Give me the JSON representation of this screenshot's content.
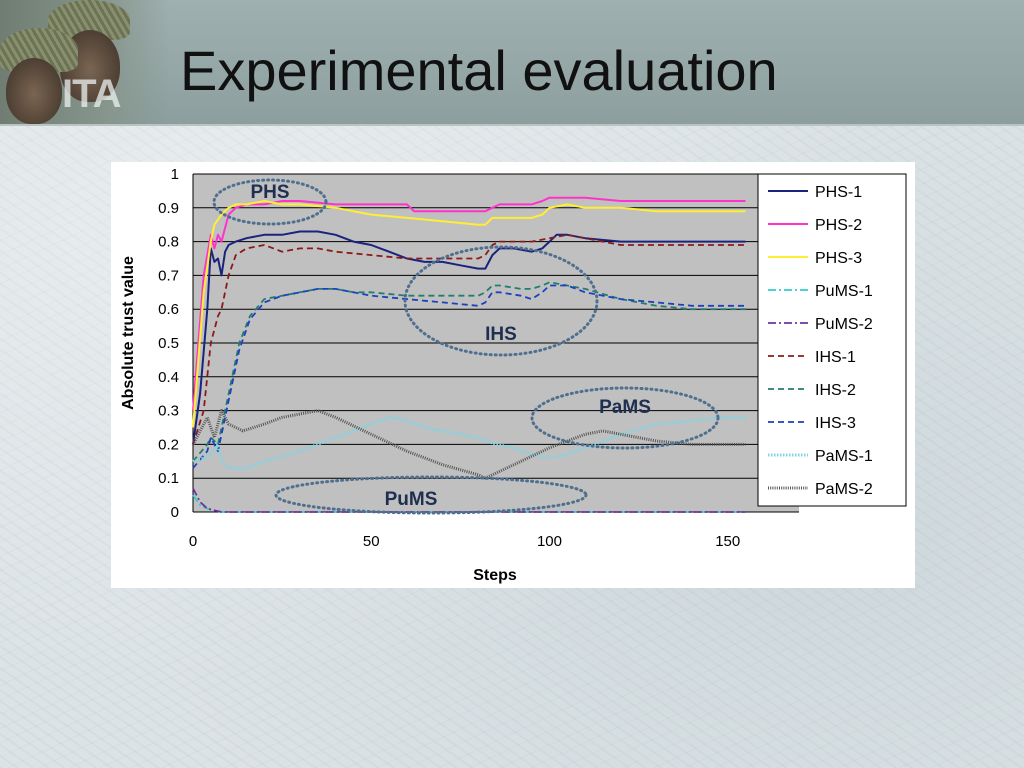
{
  "slide": {
    "title": "Experimental evaluation",
    "logo_text": "ITA"
  },
  "colors": {
    "header": "#95a7a6",
    "plot_area": "#c0c0c0",
    "annotation": "#4f6f8f"
  },
  "annotations": [
    "PHS",
    "IHS",
    "PaMS",
    "PuMS"
  ],
  "chart_data": {
    "type": "line",
    "xlabel": "Steps",
    "ylabel": "Absolute trust value",
    "xlim": [
      0,
      170
    ],
    "ylim": [
      0,
      1
    ],
    "xticks": [
      0,
      50,
      100,
      150
    ],
    "yticks": [
      0,
      0.1,
      0.2,
      0.3,
      0.4,
      0.5,
      0.6,
      0.7,
      0.8,
      0.9,
      1
    ],
    "grid": "horizontal",
    "legend": "right",
    "series": [
      {
        "name": "PHS-1",
        "color": "#1a237e",
        "dash": "solid",
        "points": [
          [
            0,
            0.2
          ],
          [
            2,
            0.35
          ],
          [
            4,
            0.6
          ],
          [
            5,
            0.78
          ],
          [
            6,
            0.74
          ],
          [
            7,
            0.75
          ],
          [
            8,
            0.7
          ],
          [
            9,
            0.77
          ],
          [
            10,
            0.79
          ],
          [
            12,
            0.8
          ],
          [
            15,
            0.81
          ],
          [
            20,
            0.82
          ],
          [
            25,
            0.82
          ],
          [
            30,
            0.83
          ],
          [
            35,
            0.83
          ],
          [
            40,
            0.82
          ],
          [
            45,
            0.8
          ],
          [
            50,
            0.79
          ],
          [
            55,
            0.77
          ],
          [
            60,
            0.75
          ],
          [
            65,
            0.74
          ],
          [
            70,
            0.74
          ],
          [
            75,
            0.73
          ],
          [
            80,
            0.72
          ],
          [
            82,
            0.72
          ],
          [
            84,
            0.76
          ],
          [
            86,
            0.78
          ],
          [
            90,
            0.78
          ],
          [
            95,
            0.77
          ],
          [
            98,
            0.78
          ],
          [
            100,
            0.8
          ],
          [
            102,
            0.82
          ],
          [
            105,
            0.82
          ],
          [
            110,
            0.81
          ],
          [
            120,
            0.8
          ],
          [
            130,
            0.8
          ],
          [
            140,
            0.8
          ],
          [
            150,
            0.8
          ],
          [
            155,
            0.8
          ]
        ]
      },
      {
        "name": "PHS-2",
        "color": "#ff33cc",
        "dash": "solid",
        "points": [
          [
            0,
            0.3
          ],
          [
            3,
            0.7
          ],
          [
            5,
            0.82
          ],
          [
            6,
            0.78
          ],
          [
            7,
            0.82
          ],
          [
            8,
            0.8
          ],
          [
            10,
            0.88
          ],
          [
            12,
            0.9
          ],
          [
            15,
            0.91
          ],
          [
            20,
            0.91
          ],
          [
            25,
            0.92
          ],
          [
            30,
            0.92
          ],
          [
            40,
            0.91
          ],
          [
            50,
            0.91
          ],
          [
            60,
            0.91
          ],
          [
            62,
            0.89
          ],
          [
            70,
            0.89
          ],
          [
            75,
            0.89
          ],
          [
            80,
            0.89
          ],
          [
            82,
            0.89
          ],
          [
            84,
            0.9
          ],
          [
            86,
            0.91
          ],
          [
            95,
            0.91
          ],
          [
            98,
            0.92
          ],
          [
            100,
            0.93
          ],
          [
            105,
            0.93
          ],
          [
            110,
            0.93
          ],
          [
            120,
            0.92
          ],
          [
            130,
            0.92
          ],
          [
            140,
            0.92
          ],
          [
            150,
            0.92
          ],
          [
            155,
            0.92
          ]
        ]
      },
      {
        "name": "PHS-3",
        "color": "#ffee33",
        "dash": "solid",
        "points": [
          [
            0,
            0.25
          ],
          [
            3,
            0.65
          ],
          [
            5,
            0.8
          ],
          [
            6,
            0.85
          ],
          [
            8,
            0.88
          ],
          [
            10,
            0.9
          ],
          [
            12,
            0.91
          ],
          [
            15,
            0.91
          ],
          [
            20,
            0.92
          ],
          [
            25,
            0.91
          ],
          [
            30,
            0.91
          ],
          [
            40,
            0.9
          ],
          [
            50,
            0.88
          ],
          [
            60,
            0.87
          ],
          [
            70,
            0.86
          ],
          [
            80,
            0.85
          ],
          [
            82,
            0.85
          ],
          [
            84,
            0.87
          ],
          [
            86,
            0.87
          ],
          [
            95,
            0.87
          ],
          [
            98,
            0.88
          ],
          [
            100,
            0.9
          ],
          [
            105,
            0.91
          ],
          [
            110,
            0.9
          ],
          [
            120,
            0.9
          ],
          [
            130,
            0.89
          ],
          [
            140,
            0.89
          ],
          [
            150,
            0.89
          ],
          [
            155,
            0.89
          ]
        ]
      },
      {
        "name": "PuMS-1",
        "color": "#33cccc",
        "dash": "dashdot",
        "points": [
          [
            0,
            0.05
          ],
          [
            2,
            0.02
          ],
          [
            4,
            0.01
          ],
          [
            8,
            0.0
          ],
          [
            20,
            0.0
          ],
          [
            60,
            0.0
          ],
          [
            100,
            0.0
          ],
          [
            155,
            0.0
          ]
        ]
      },
      {
        "name": "PuMS-2",
        "color": "#7030a0",
        "dash": "dashdot",
        "points": [
          [
            0,
            0.07
          ],
          [
            2,
            0.03
          ],
          [
            4,
            0.01
          ],
          [
            8,
            0.0
          ],
          [
            20,
            0.0
          ],
          [
            60,
            0.0
          ],
          [
            100,
            0.0
          ],
          [
            155,
            0.0
          ]
        ]
      },
      {
        "name": "IHS-1",
        "color": "#8b1a1a",
        "dash": "dashed",
        "points": [
          [
            0,
            0.2
          ],
          [
            3,
            0.3
          ],
          [
            5,
            0.5
          ],
          [
            7,
            0.58
          ],
          [
            8,
            0.6
          ],
          [
            10,
            0.7
          ],
          [
            12,
            0.76
          ],
          [
            15,
            0.78
          ],
          [
            20,
            0.79
          ],
          [
            25,
            0.77
          ],
          [
            30,
            0.78
          ],
          [
            35,
            0.78
          ],
          [
            40,
            0.77
          ],
          [
            50,
            0.76
          ],
          [
            60,
            0.75
          ],
          [
            70,
            0.75
          ],
          [
            80,
            0.75
          ],
          [
            82,
            0.76
          ],
          [
            84,
            0.79
          ],
          [
            86,
            0.8
          ],
          [
            95,
            0.8
          ],
          [
            100,
            0.81
          ],
          [
            105,
            0.82
          ],
          [
            110,
            0.81
          ],
          [
            120,
            0.79
          ],
          [
            130,
            0.79
          ],
          [
            140,
            0.79
          ],
          [
            150,
            0.79
          ],
          [
            155,
            0.79
          ]
        ]
      },
      {
        "name": "IHS-2",
        "color": "#1f7f6f",
        "dash": "dashed",
        "points": [
          [
            0,
            0.15
          ],
          [
            4,
            0.2
          ],
          [
            5,
            0.22
          ],
          [
            7,
            0.2
          ],
          [
            9,
            0.3
          ],
          [
            11,
            0.4
          ],
          [
            13,
            0.5
          ],
          [
            16,
            0.58
          ],
          [
            20,
            0.63
          ],
          [
            25,
            0.64
          ],
          [
            30,
            0.65
          ],
          [
            35,
            0.66
          ],
          [
            40,
            0.66
          ],
          [
            45,
            0.65
          ],
          [
            50,
            0.65
          ],
          [
            60,
            0.64
          ],
          [
            70,
            0.64
          ],
          [
            80,
            0.64
          ],
          [
            82,
            0.65
          ],
          [
            84,
            0.67
          ],
          [
            86,
            0.67
          ],
          [
            92,
            0.66
          ],
          [
            95,
            0.66
          ],
          [
            98,
            0.67
          ],
          [
            100,
            0.68
          ],
          [
            105,
            0.67
          ],
          [
            110,
            0.66
          ],
          [
            120,
            0.63
          ],
          [
            130,
            0.61
          ],
          [
            140,
            0.6
          ],
          [
            150,
            0.6
          ],
          [
            155,
            0.6
          ]
        ]
      },
      {
        "name": "IHS-3",
        "color": "#1f3fbf",
        "dash": "dashed",
        "points": [
          [
            0,
            0.13
          ],
          [
            4,
            0.18
          ],
          [
            5,
            0.22
          ],
          [
            7,
            0.18
          ],
          [
            9,
            0.28
          ],
          [
            11,
            0.38
          ],
          [
            13,
            0.48
          ],
          [
            16,
            0.57
          ],
          [
            20,
            0.62
          ],
          [
            25,
            0.64
          ],
          [
            30,
            0.65
          ],
          [
            35,
            0.66
          ],
          [
            40,
            0.66
          ],
          [
            45,
            0.65
          ],
          [
            50,
            0.64
          ],
          [
            60,
            0.63
          ],
          [
            70,
            0.62
          ],
          [
            80,
            0.61
          ],
          [
            82,
            0.62
          ],
          [
            84,
            0.65
          ],
          [
            86,
            0.65
          ],
          [
            92,
            0.64
          ],
          [
            95,
            0.63
          ],
          [
            98,
            0.65
          ],
          [
            100,
            0.67
          ],
          [
            105,
            0.67
          ],
          [
            110,
            0.65
          ],
          [
            120,
            0.63
          ],
          [
            130,
            0.62
          ],
          [
            140,
            0.61
          ],
          [
            150,
            0.61
          ],
          [
            155,
            0.61
          ]
        ]
      },
      {
        "name": "PaMS-1",
        "color": "#7fd4e6",
        "dash": "dotted",
        "points": [
          [
            0,
            0.15
          ],
          [
            3,
            0.16
          ],
          [
            5,
            0.17
          ],
          [
            7,
            0.2
          ],
          [
            8,
            0.15
          ],
          [
            10,
            0.13
          ],
          [
            15,
            0.13
          ],
          [
            20,
            0.15
          ],
          [
            30,
            0.18
          ],
          [
            40,
            0.22
          ],
          [
            50,
            0.26
          ],
          [
            55,
            0.28
          ],
          [
            60,
            0.27
          ],
          [
            65,
            0.25
          ],
          [
            70,
            0.24
          ],
          [
            80,
            0.22
          ],
          [
            85,
            0.2
          ],
          [
            90,
            0.19
          ],
          [
            95,
            0.17
          ],
          [
            100,
            0.16
          ],
          [
            105,
            0.17
          ],
          [
            110,
            0.19
          ],
          [
            120,
            0.23
          ],
          [
            130,
            0.26
          ],
          [
            140,
            0.27
          ],
          [
            150,
            0.28
          ],
          [
            155,
            0.28
          ]
        ]
      },
      {
        "name": "PaMS-2",
        "color": "#555555",
        "dash": "densedot",
        "points": [
          [
            0,
            0.2
          ],
          [
            4,
            0.28
          ],
          [
            6,
            0.22
          ],
          [
            8,
            0.3
          ],
          [
            10,
            0.26
          ],
          [
            14,
            0.24
          ],
          [
            20,
            0.26
          ],
          [
            25,
            0.28
          ],
          [
            30,
            0.29
          ],
          [
            35,
            0.3
          ],
          [
            40,
            0.28
          ],
          [
            50,
            0.23
          ],
          [
            60,
            0.18
          ],
          [
            70,
            0.14
          ],
          [
            80,
            0.11
          ],
          [
            82,
            0.1
          ],
          [
            90,
            0.14
          ],
          [
            100,
            0.19
          ],
          [
            110,
            0.23
          ],
          [
            115,
            0.24
          ],
          [
            120,
            0.23
          ],
          [
            130,
            0.21
          ],
          [
            140,
            0.2
          ],
          [
            150,
            0.2
          ],
          [
            155,
            0.2
          ]
        ]
      }
    ]
  }
}
